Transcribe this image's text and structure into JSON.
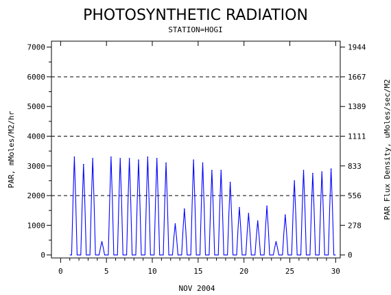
{
  "chart_data": {
    "type": "line",
    "title": "PHOTOSYNTHETIC RADIATION",
    "subtitle": "STATION=HOGI",
    "xlabel": "NOV 2004",
    "ylabel_left": "PAR, mMoles/M2/hr",
    "ylabel_right": "PAR Flux Density, uMoles/sec/M2",
    "xlim": [
      -1,
      30.5
    ],
    "ylim": [
      -100,
      7200
    ],
    "x_ticks": [
      0,
      5,
      10,
      15,
      20,
      25,
      30
    ],
    "x_tick_labels": [
      "0",
      "5",
      "10",
      "15",
      "20",
      "25",
      "30"
    ],
    "y_ticks_left": [
      0,
      1000,
      2000,
      3000,
      4000,
      5000,
      6000,
      7000
    ],
    "y_tick_labels_left": [
      "0",
      "1000",
      "2000",
      "3000",
      "4000",
      "5000",
      "6000",
      "7000"
    ],
    "y_ticks_right": [
      0,
      1000,
      2000,
      3000,
      4000,
      5000,
      6000,
      7000
    ],
    "y_tick_labels_right": [
      "0",
      "278",
      "556",
      "833",
      "1111",
      "1389",
      "1667",
      "1944"
    ],
    "gridlines_y": [
      2000,
      4000,
      6000
    ],
    "grid_style": "dashed",
    "series": [
      {
        "color": "#0000ff",
        "daily_peaks": [
          {
            "x": 1.5,
            "y": 3300
          },
          {
            "x": 2.5,
            "y": 3050
          },
          {
            "x": 3.5,
            "y": 3250
          },
          {
            "x": 4.5,
            "y": 450
          },
          {
            "x": 5.5,
            "y": 3300
          },
          {
            "x": 6.5,
            "y": 3250
          },
          {
            "x": 7.5,
            "y": 3250
          },
          {
            "x": 8.5,
            "y": 3200
          },
          {
            "x": 9.5,
            "y": 3300
          },
          {
            "x": 10.5,
            "y": 3250
          },
          {
            "x": 11.5,
            "y": 3100
          },
          {
            "x": 12.5,
            "y": 1050
          },
          {
            "x": 13.5,
            "y": 1550
          },
          {
            "x": 14.5,
            "y": 3200
          },
          {
            "x": 15.5,
            "y": 3100
          },
          {
            "x": 16.5,
            "y": 2850
          },
          {
            "x": 17.5,
            "y": 2850
          },
          {
            "x": 18.5,
            "y": 2450
          },
          {
            "x": 19.5,
            "y": 1600
          },
          {
            "x": 20.5,
            "y": 1400
          },
          {
            "x": 21.5,
            "y": 1150
          },
          {
            "x": 22.5,
            "y": 1650
          },
          {
            "x": 23.5,
            "y": 450
          },
          {
            "x": 24.5,
            "y": 1350
          },
          {
            "x": 25.5,
            "y": 2500
          },
          {
            "x": 26.5,
            "y": 2850
          },
          {
            "x": 27.5,
            "y": 2750
          },
          {
            "x": 28.5,
            "y": 2800
          },
          {
            "x": 29.5,
            "y": 2900
          }
        ]
      }
    ]
  }
}
